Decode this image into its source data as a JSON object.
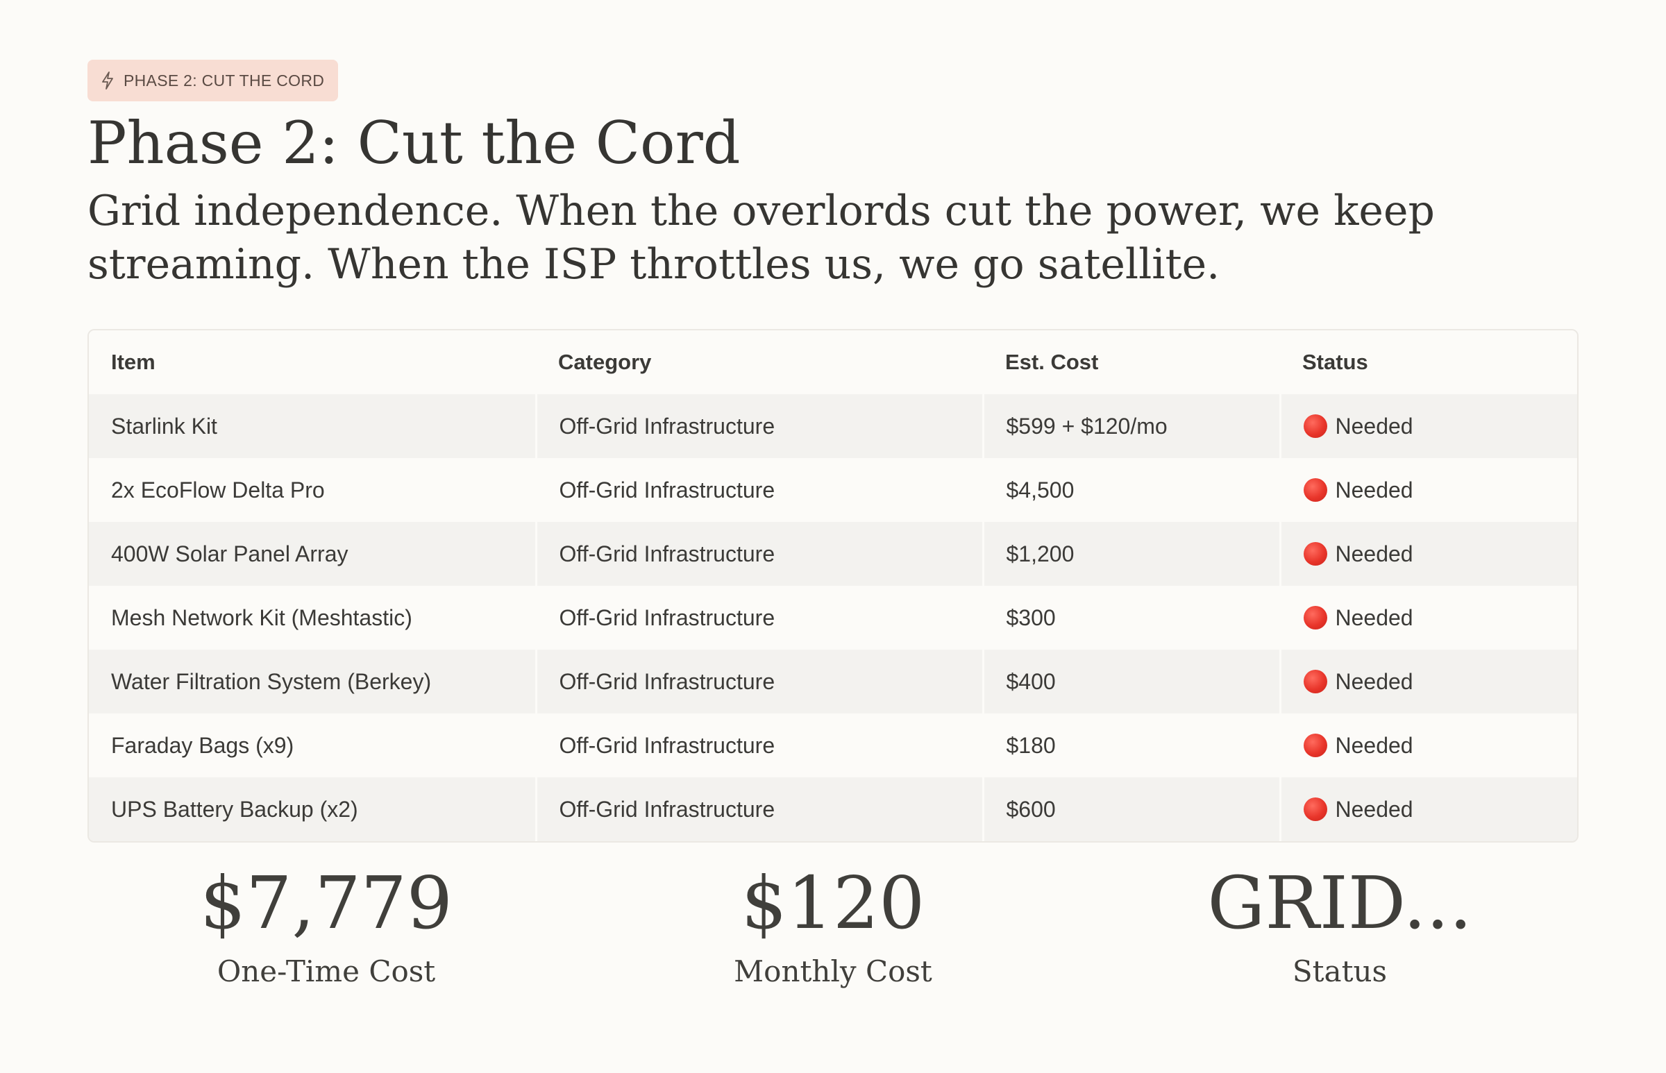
{
  "badge": {
    "icon": "lightning-icon",
    "label": "PHASE 2: CUT THE CORD"
  },
  "title": "Phase 2: Cut the Cord",
  "subtitle": "Grid independence. When the overlords cut the power, we keep streaming. When the ISP throttles us, we go satellite.",
  "table": {
    "headers": {
      "item": "Item",
      "category": "Category",
      "cost": "Est. Cost",
      "status": "Status"
    },
    "rows": [
      {
        "item": "Starlink Kit",
        "category": "Off-Grid Infrastructure",
        "cost": "$599 + $120/mo",
        "status": "Needed"
      },
      {
        "item": "2x EcoFlow Delta Pro",
        "category": "Off-Grid Infrastructure",
        "cost": "$4,500",
        "status": "Needed"
      },
      {
        "item": "400W Solar Panel Array",
        "category": "Off-Grid Infrastructure",
        "cost": "$1,200",
        "status": "Needed"
      },
      {
        "item": "Mesh Network Kit (Meshtastic)",
        "category": "Off-Grid Infrastructure",
        "cost": "$300",
        "status": "Needed"
      },
      {
        "item": "Water Filtration System (Berkey)",
        "category": "Off-Grid Infrastructure",
        "cost": "$400",
        "status": "Needed"
      },
      {
        "item": "Faraday Bags (x9)",
        "category": "Off-Grid Infrastructure",
        "cost": "$180",
        "status": "Needed"
      },
      {
        "item": "UPS Battery Backup (x2)",
        "category": "Off-Grid Infrastructure",
        "cost": "$600",
        "status": "Needed"
      }
    ],
    "status_icon": "red-circle-icon",
    "status_color": "#e8352a"
  },
  "stats": [
    {
      "value": "$7,779",
      "label": "One-Time Cost"
    },
    {
      "value": "$120",
      "label": "Monthly Cost"
    },
    {
      "value": "GRID...",
      "label": "Status"
    }
  ],
  "colors": {
    "background": "#fcfbf8",
    "badge_bg": "#f8ddd3",
    "row_alt": "#f3f2ef",
    "text": "#363532"
  }
}
